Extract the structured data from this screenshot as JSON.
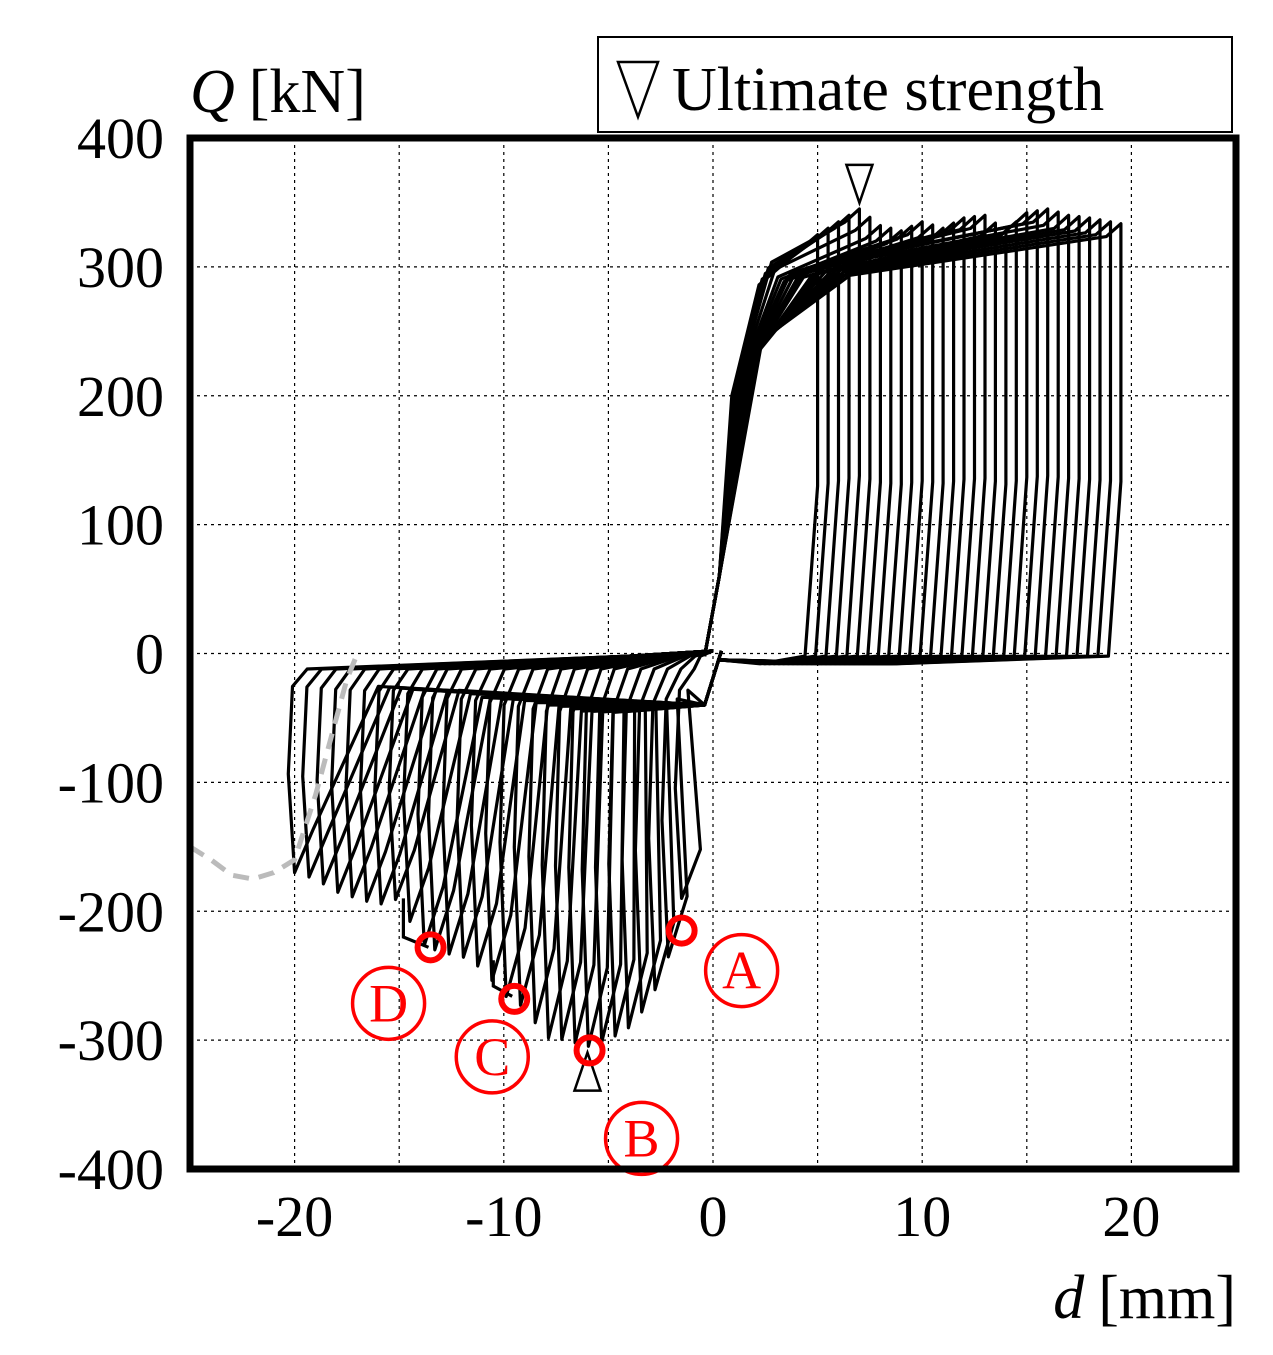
{
  "chart_data": {
    "type": "line",
    "ylabel_symbol": "Q",
    "ylabel_unit": "[kN]",
    "xlabel_symbol": "d",
    "xlabel_unit": "[mm]",
    "xlim": [
      -25,
      25
    ],
    "ylim": [
      -400,
      400
    ],
    "xticks": [
      -20,
      -10,
      0,
      10,
      20
    ],
    "yticks": [
      -400,
      -300,
      -200,
      -100,
      0,
      100,
      200,
      300,
      400
    ],
    "grid": true,
    "legend": {
      "position": "top-right",
      "label": "Ultimate strength",
      "marker": "open-triangle"
    },
    "ultimate_points": [
      {
        "x": 7.0,
        "y": 345,
        "direction": "down"
      },
      {
        "x": -6.0,
        "y": -305,
        "direction": "up"
      }
    ],
    "annotations": [
      {
        "label": "A",
        "x": -1.5,
        "y": -215
      },
      {
        "label": "B",
        "x": -5.9,
        "y": -308
      },
      {
        "label": "C",
        "x": -9.5,
        "y": -268
      },
      {
        "label": "D",
        "x": -13.5,
        "y": -228
      }
    ],
    "series": [
      {
        "style": "solid-black",
        "positive_envelope": {
          "x": [
            0,
            1,
            2,
            3,
            4,
            5,
            6,
            7,
            8,
            9,
            10,
            11,
            12,
            13,
            14,
            15,
            16,
            17,
            18,
            19,
            20
          ],
          "y": [
            0,
            220,
            280,
            300,
            315,
            325,
            335,
            345,
            332,
            328,
            335,
            330,
            338,
            340,
            328,
            342,
            345,
            340,
            338,
            335,
            332
          ]
        },
        "negative_envelope": {
          "x": [
            0,
            -1,
            -2,
            -3,
            -4,
            -5,
            -6,
            -7,
            -8,
            -9,
            -10,
            -11,
            -12,
            -13,
            -14,
            -15,
            -16,
            -17,
            -18,
            -19,
            -20
          ],
          "y": [
            0,
            -150,
            -230,
            -270,
            -290,
            -300,
            -305,
            -300,
            -298,
            -275,
            -265,
            -245,
            -235,
            -232,
            -225,
            -190,
            -195,
            -190,
            -185,
            -175,
            -170
          ]
        }
      },
      {
        "style": "dashed-gray",
        "x": [
          -25,
          -24,
          -23,
          -22,
          -21,
          -20,
          -19,
          -18,
          -17.5,
          -17
        ],
        "y": [
          -150,
          -160,
          -172,
          -175,
          -170,
          -160,
          -110,
          -50,
          -20,
          0
        ]
      }
    ]
  }
}
